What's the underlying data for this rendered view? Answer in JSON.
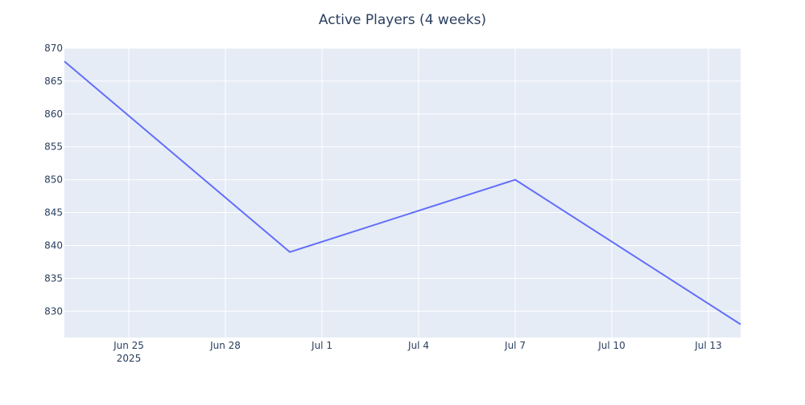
{
  "chart_data": {
    "type": "line",
    "title": "Active Players (4 weeks)",
    "xlabel": "",
    "ylabel": "",
    "x": [
      "2025-06-23",
      "2025-06-30",
      "2025-07-07",
      "2025-07-14"
    ],
    "series": [
      {
        "values": [
          868,
          839,
          850,
          828
        ]
      }
    ],
    "xlim": [
      "2025-06-23",
      "2025-07-14"
    ],
    "ylim": [
      826,
      870
    ],
    "x_ticks": [
      "2025-06-25",
      "2025-06-28",
      "2025-07-01",
      "2025-07-04",
      "2025-07-07",
      "2025-07-10",
      "2025-07-13"
    ],
    "x_tick_labels": [
      "Jun 25",
      "Jun 28",
      "Jul 1",
      "Jul 4",
      "Jul 7",
      "Jul 10",
      "Jul 13"
    ],
    "x_tick_year_label": "2025",
    "y_ticks": [
      830,
      835,
      840,
      845,
      850,
      855,
      860,
      865,
      870
    ],
    "grid": true,
    "legend": "none",
    "colors": {
      "line": "#636efa",
      "plot_background": "#e5ecf6",
      "grid": "#ffffff",
      "text": "#2a3f5f"
    }
  }
}
